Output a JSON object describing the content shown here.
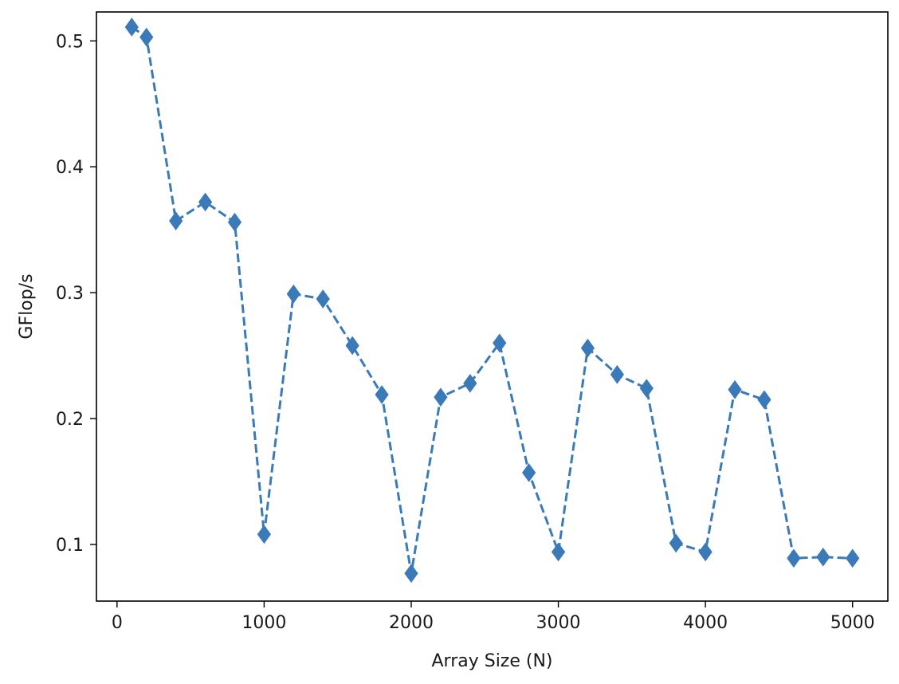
{
  "chart_data": {
    "type": "line",
    "title": "",
    "xlabel": "Array Size (N)",
    "ylabel": "GFlop/s",
    "xlim": [
      -140,
      5240
    ],
    "ylim": [
      0.055,
      0.523
    ],
    "xticks": [
      0,
      1000,
      2000,
      3000,
      4000,
      5000
    ],
    "xtick_labels": [
      "0",
      "1000",
      "2000",
      "3000",
      "4000",
      "5000"
    ],
    "yticks": [
      0.1,
      0.2,
      0.3,
      0.4,
      0.5
    ],
    "ytick_labels": [
      "0.1",
      "0.2",
      "0.3",
      "0.4",
      "0.5"
    ],
    "grid": false,
    "legend": "none",
    "series": [
      {
        "line_style": "dashed",
        "marker": "diamond",
        "color": "#3a7ab8",
        "x": [
          100,
          200,
          400,
          600,
          800,
          1000,
          1200,
          1400,
          1600,
          1800,
          2000,
          2200,
          2400,
          2600,
          2800,
          3000,
          3200,
          3400,
          3600,
          3800,
          4000,
          4200,
          4400,
          4600,
          4800,
          5000
        ],
        "y": [
          0.511,
          0.503,
          0.357,
          0.372,
          0.356,
          0.108,
          0.299,
          0.295,
          0.258,
          0.219,
          0.077,
          0.217,
          0.228,
          0.26,
          0.157,
          0.094,
          0.256,
          0.235,
          0.224,
          0.101,
          0.094,
          0.223,
          0.215,
          0.089,
          0.09,
          0.089
        ]
      }
    ]
  }
}
